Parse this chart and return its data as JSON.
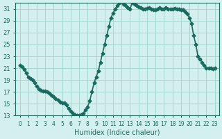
{
  "title": "",
  "xlabel": "Humidex (Indice chaleur)",
  "ylabel": "",
  "bg_color": "#d4f0ee",
  "line_color": "#1a6b5e",
  "grid_color": "#a0d8d0",
  "x_values": [
    0,
    0.25,
    0.5,
    0.75,
    1,
    1.25,
    1.5,
    1.75,
    2,
    2.25,
    2.5,
    2.75,
    3,
    3.25,
    3.5,
    3.75,
    4,
    4.25,
    4.5,
    4.75,
    5,
    5.25,
    5.5,
    5.75,
    6,
    6.25,
    6.5,
    6.75,
    7,
    7.25,
    7.5,
    7.75,
    8,
    8.25,
    8.5,
    8.75,
    9,
    9.25,
    9.5,
    9.75,
    10,
    10.25,
    10.5,
    10.75,
    11,
    11.25,
    11.5,
    11.75,
    12,
    12.25,
    12.5,
    12.75,
    13,
    13.25,
    13.5,
    13.75,
    14,
    14.25,
    14.5,
    14.75,
    15,
    15.25,
    15.5,
    15.75,
    16,
    16.25,
    16.5,
    16.75,
    17,
    17.25,
    17.5,
    17.75,
    18,
    18.25,
    18.5,
    18.75,
    19,
    19.25,
    19.5,
    19.75,
    20,
    20.25,
    20.5,
    20.75,
    21,
    21.25,
    21.5,
    21.75,
    22,
    22.25,
    22.5,
    22.75,
    23
  ],
  "y_values": [
    21.5,
    21.2,
    20.8,
    20.2,
    19.5,
    19.2,
    19.0,
    18.5,
    18.0,
    17.5,
    17.3,
    17.2,
    17.1,
    17.0,
    16.8,
    16.5,
    16.2,
    15.9,
    15.6,
    15.3,
    15.2,
    15.1,
    14.8,
    14.2,
    13.8,
    13.4,
    13.2,
    13.1,
    13.0,
    13.2,
    13.4,
    14.0,
    14.5,
    15.5,
    17.0,
    18.5,
    19.5,
    20.5,
    22.0,
    23.5,
    25.0,
    26.5,
    28.0,
    29.5,
    30.3,
    31.0,
    31.5,
    32.0,
    32.3,
    31.8,
    31.5,
    31.2,
    31.0,
    32.0,
    31.8,
    31.5,
    31.3,
    31.2,
    31.0,
    31.0,
    31.1,
    31.2,
    31.0,
    30.8,
    30.9,
    31.0,
    31.2,
    31.0,
    31.0,
    31.2,
    31.0,
    31.0,
    31.0,
    31.1,
    31.0,
    31.0,
    30.9,
    30.8,
    30.5,
    30.2,
    29.5,
    28.5,
    26.5,
    25.0,
    23.0,
    22.5,
    22.0,
    21.5,
    21.0,
    21.0,
    21.0,
    20.9,
    21.0
  ],
  "xlim": [
    -0.5,
    23.5
  ],
  "ylim": [
    13,
    32
  ],
  "yticks": [
    13,
    15,
    17,
    19,
    21,
    23,
    25,
    27,
    29,
    31
  ],
  "xticks": [
    0,
    1,
    2,
    3,
    4,
    5,
    6,
    7,
    8,
    9,
    10,
    11,
    12,
    13,
    14,
    15,
    16,
    17,
    18,
    19,
    20,
    21,
    22,
    23
  ],
  "marker": "D",
  "marker_size": 2.5,
  "line_width": 1.2
}
